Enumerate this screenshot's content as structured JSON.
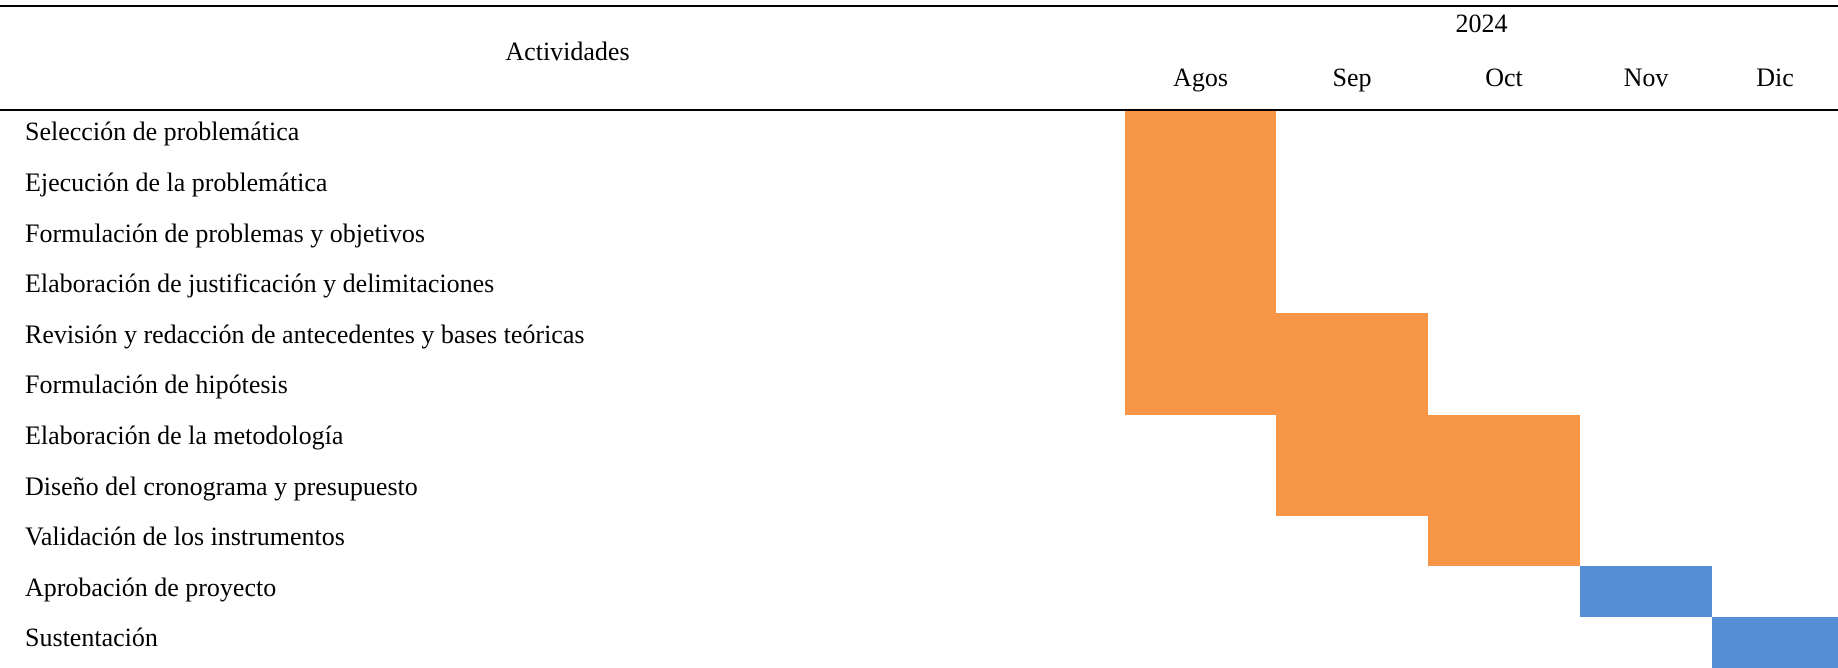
{
  "header": {
    "activities_label": "Actividades",
    "year": "2024",
    "months": [
      "Agos",
      "Sep",
      "Oct",
      "Nov",
      "Dic"
    ]
  },
  "colors": {
    "active": "#F79646",
    "final": "#558ED5"
  },
  "activities": [
    {
      "label": "Selección de problemática",
      "months": [
        0
      ],
      "color": "active"
    },
    {
      "label": "Ejecución de la problemática",
      "months": [
        0
      ],
      "color": "active"
    },
    {
      "label": "Formulación de problemas y objetivos",
      "months": [
        0
      ],
      "color": "active"
    },
    {
      "label": "Elaboración de justificación y delimitaciones",
      "months": [
        0
      ],
      "color": "active"
    },
    {
      "label": "Revisión y redacción de antecedentes y bases teóricas",
      "months": [
        0,
        1
      ],
      "color": "active"
    },
    {
      "label": "Formulación de hipótesis",
      "months": [
        0,
        1
      ],
      "color": "active"
    },
    {
      "label": "Elaboración de la metodología",
      "months": [
        1,
        2
      ],
      "color": "active"
    },
    {
      "label": "Diseño del cronograma y presupuesto",
      "months": [
        1,
        2
      ],
      "color": "active"
    },
    {
      "label": "Validación de los instrumentos",
      "months": [
        2
      ],
      "color": "active"
    },
    {
      "label": "Aprobación de proyecto",
      "months": [
        3
      ],
      "color": "final"
    },
    {
      "label": "Sustentación",
      "months": [
        4
      ],
      "color": "final"
    }
  ]
}
